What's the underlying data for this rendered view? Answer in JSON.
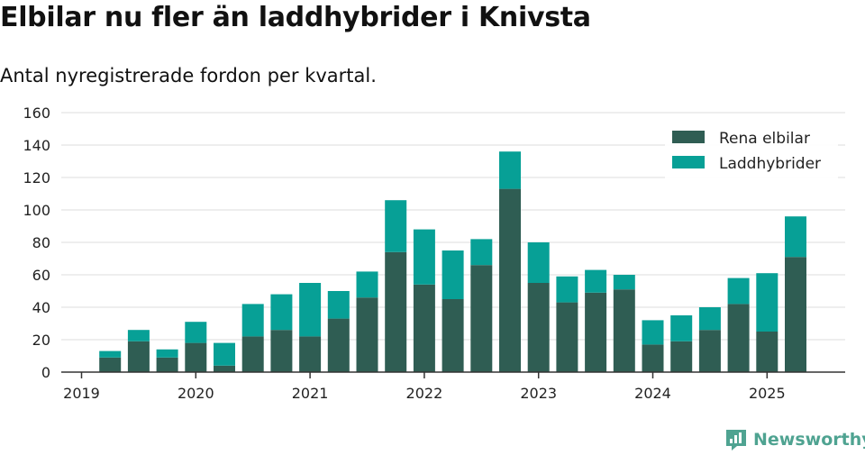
{
  "title": "Elbilar nu fler än laddhybrider i Knivsta",
  "subtitle": "Antal nyregistrerade fordon per kvartal.",
  "brand": "Newsworthy",
  "colors": {
    "elbilar": "#2f5d53",
    "laddhybrider": "#07a096",
    "grid": "#dddddd",
    "axis": "#333333",
    "brand": "#4fa391"
  },
  "chart_data": {
    "type": "bar",
    "stacked": true,
    "title": "Elbilar nu fler än laddhybrider i Knivsta",
    "subtitle": "Antal nyregistrerade fordon per kvartal.",
    "xlabel": "",
    "ylabel": "",
    "ylim": [
      0,
      160
    ],
    "yticks": [
      0,
      20,
      40,
      60,
      80,
      100,
      120,
      140,
      160
    ],
    "xtick_labels": [
      "2019",
      "2020",
      "2021",
      "2022",
      "2023",
      "2024",
      "2025"
    ],
    "grid": true,
    "legend_position": "top-right",
    "categories": [
      "2019 Q1",
      "2019 Q2",
      "2019 Q3",
      "2019 Q4",
      "2020 Q1",
      "2020 Q2",
      "2020 Q3",
      "2020 Q4",
      "2021 Q1",
      "2021 Q2",
      "2021 Q3",
      "2021 Q4",
      "2022 Q1",
      "2022 Q2",
      "2022 Q3",
      "2022 Q4",
      "2023 Q1",
      "2023 Q2",
      "2023 Q3",
      "2023 Q4",
      "2024 Q1",
      "2024 Q2",
      "2024 Q3",
      "2024 Q4",
      "2025 Q1",
      "2025 Q2"
    ],
    "series": [
      {
        "name": "Rena elbilar",
        "values": [
          0,
          9,
          19,
          9,
          18,
          4,
          22,
          26,
          22,
          33,
          46,
          74,
          54,
          45,
          66,
          113,
          55,
          43,
          49,
          51,
          17,
          19,
          26,
          42,
          25,
          71
        ]
      },
      {
        "name": "Laddhybrider",
        "values": [
          0,
          4,
          7,
          5,
          13,
          14,
          20,
          22,
          33,
          17,
          16,
          32,
          34,
          30,
          16,
          23,
          25,
          16,
          14,
          9,
          15,
          16,
          14,
          16,
          36,
          25
        ]
      }
    ]
  }
}
